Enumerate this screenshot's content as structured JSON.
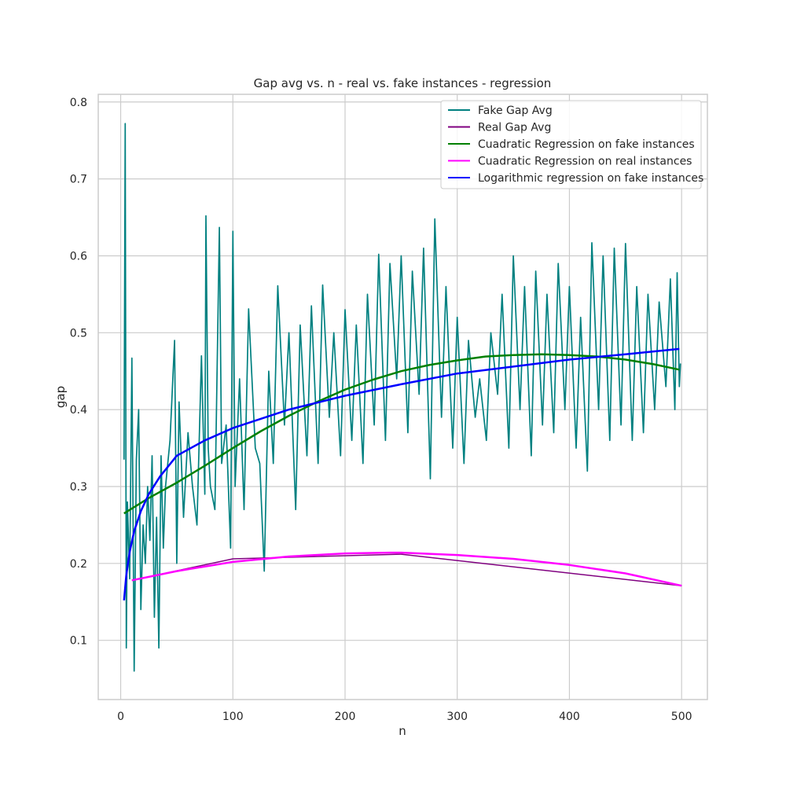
{
  "chart_data": {
    "type": "line",
    "title": "Gap avg vs. n - real vs. fake instances - regression",
    "xlabel": "n",
    "ylabel": "gap",
    "xlim": [
      -20,
      523
    ],
    "ylim": [
      0.023,
      0.81
    ],
    "xticks": [
      0,
      100,
      200,
      300,
      400,
      500
    ],
    "yticks": [
      0.1,
      0.2,
      0.3,
      0.4,
      0.5,
      0.6,
      0.7,
      0.8
    ],
    "grid": true,
    "legend_position": "top-right",
    "series": [
      {
        "name": "Fake Gap Avg",
        "color": "#008080",
        "style": "noisy",
        "x": [
          3,
          4,
          5,
          6,
          8,
          10,
          12,
          14,
          16,
          18,
          20,
          22,
          24,
          26,
          28,
          30,
          32,
          34,
          36,
          38,
          40,
          44,
          48,
          50,
          52,
          56,
          60,
          64,
          68,
          72,
          75,
          76,
          78,
          80,
          84,
          88,
          90,
          94,
          98,
          100,
          102,
          106,
          110,
          114,
          120,
          124,
          128,
          132,
          136,
          140,
          146,
          150,
          156,
          160,
          166,
          170,
          176,
          180,
          186,
          190,
          196,
          200,
          206,
          210,
          216,
          220,
          226,
          230,
          236,
          240,
          246,
          250,
          256,
          260,
          266,
          270,
          276,
          280,
          286,
          290,
          296,
          300,
          306,
          310,
          316,
          320,
          326,
          330,
          336,
          340,
          346,
          350,
          356,
          360,
          366,
          370,
          376,
          380,
          386,
          390,
          396,
          400,
          406,
          410,
          416,
          420,
          426,
          430,
          436,
          440,
          446,
          450,
          456,
          460,
          466,
          470,
          476,
          480,
          486,
          490,
          494,
          496,
          498,
          499
        ],
        "y": [
          0.335,
          0.772,
          0.09,
          0.28,
          0.18,
          0.467,
          0.06,
          0.335,
          0.4,
          0.14,
          0.25,
          0.2,
          0.3,
          0.23,
          0.34,
          0.13,
          0.26,
          0.09,
          0.34,
          0.22,
          0.3,
          0.36,
          0.49,
          0.2,
          0.41,
          0.26,
          0.37,
          0.3,
          0.25,
          0.47,
          0.29,
          0.652,
          0.35,
          0.3,
          0.27,
          0.637,
          0.33,
          0.38,
          0.22,
          0.632,
          0.3,
          0.44,
          0.27,
          0.531,
          0.35,
          0.33,
          0.19,
          0.45,
          0.33,
          0.561,
          0.38,
          0.5,
          0.27,
          0.51,
          0.34,
          0.535,
          0.33,
          0.562,
          0.39,
          0.5,
          0.34,
          0.53,
          0.36,
          0.51,
          0.33,
          0.55,
          0.38,
          0.602,
          0.36,
          0.59,
          0.44,
          0.6,
          0.37,
          0.58,
          0.42,
          0.61,
          0.31,
          0.648,
          0.39,
          0.56,
          0.35,
          0.52,
          0.33,
          0.49,
          0.39,
          0.44,
          0.36,
          0.5,
          0.42,
          0.55,
          0.35,
          0.6,
          0.4,
          0.56,
          0.34,
          0.58,
          0.38,
          0.55,
          0.37,
          0.59,
          0.4,
          0.56,
          0.35,
          0.52,
          0.32,
          0.617,
          0.4,
          0.6,
          0.36,
          0.61,
          0.38,
          0.616,
          0.36,
          0.56,
          0.37,
          0.55,
          0.4,
          0.54,
          0.43,
          0.57,
          0.4,
          0.578,
          0.43,
          0.46
        ]
      },
      {
        "name": "Real Gap Avg",
        "color": "#800080",
        "style": "line",
        "x": [
          10,
          100,
          250,
          500
        ],
        "y": [
          0.178,
          0.206,
          0.212,
          0.171
        ]
      },
      {
        "name": "Cuadratic Regression on fake instances",
        "color": "#008000",
        "style": "smooth",
        "x": [
          3,
          25,
          50,
          75,
          100,
          125,
          150,
          175,
          200,
          225,
          250,
          275,
          300,
          325,
          350,
          375,
          400,
          425,
          450,
          475,
          498
        ],
        "y": [
          0.265,
          0.285,
          0.305,
          0.327,
          0.35,
          0.372,
          0.392,
          0.41,
          0.426,
          0.439,
          0.45,
          0.458,
          0.464,
          0.469,
          0.471,
          0.472,
          0.471,
          0.469,
          0.465,
          0.459,
          0.452
        ]
      },
      {
        "name": "Cuadratic Regression on real instances",
        "color": "#ff00ff",
        "style": "smooth",
        "x": [
          10,
          50,
          100,
          150,
          200,
          240,
          250,
          300,
          350,
          400,
          450,
          500
        ],
        "y": [
          0.178,
          0.19,
          0.202,
          0.209,
          0.213,
          0.214,
          0.214,
          0.211,
          0.206,
          0.198,
          0.187,
          0.171
        ]
      },
      {
        "name": "Logarithmic regression on fake instances",
        "color": "#0000ff",
        "style": "smooth",
        "x": [
          3,
          5,
          8,
          12,
          18,
          25,
          35,
          50,
          75,
          100,
          150,
          200,
          250,
          300,
          350,
          400,
          450,
          498
        ],
        "y": [
          0.152,
          0.185,
          0.215,
          0.242,
          0.268,
          0.29,
          0.313,
          0.34,
          0.36,
          0.376,
          0.4,
          0.418,
          0.433,
          0.447,
          0.456,
          0.465,
          0.472,
          0.479
        ]
      }
    ]
  }
}
